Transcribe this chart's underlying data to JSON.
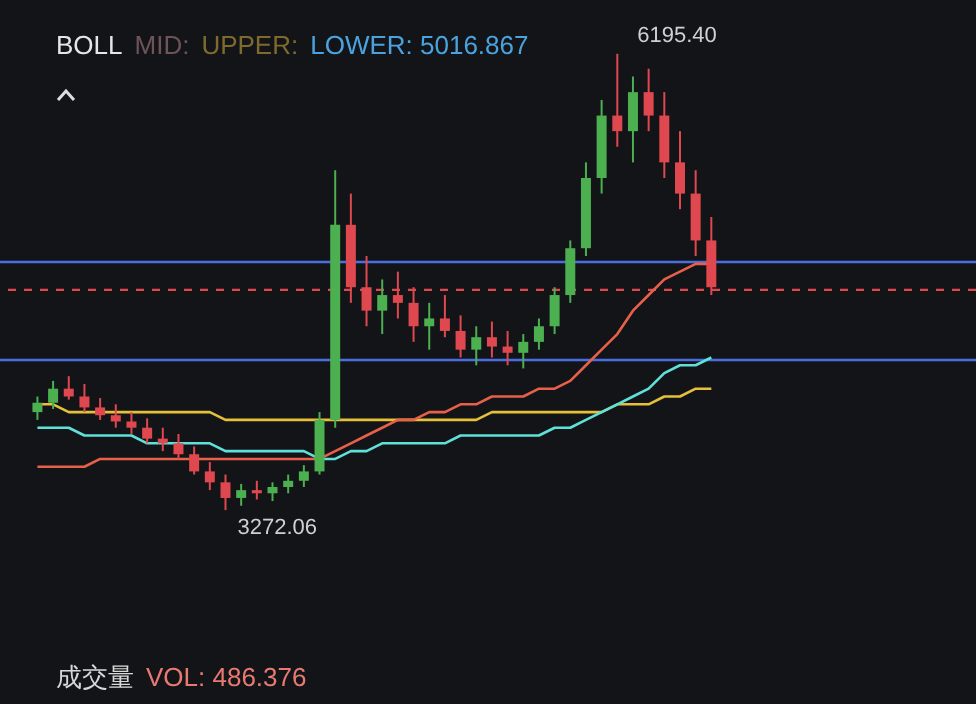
{
  "chart_data": {
    "type": "candlestick",
    "annotations": [
      "BOLL",
      "MID:",
      "UPPER:",
      "LOWER: 5016.867",
      "成交量",
      "VOL: 486.376",
      "6195.40",
      "3272.06"
    ],
    "categories": [
      null,
      null,
      null,
      null,
      null,
      null,
      null,
      null,
      null,
      null,
      null,
      null,
      null,
      null,
      null,
      null,
      null,
      null,
      null,
      null,
      null,
      null,
      null,
      null,
      null,
      null,
      null,
      null,
      null,
      null,
      null,
      null,
      null,
      null,
      null,
      null,
      null,
      null,
      null,
      null,
      null,
      null,
      null,
      null
    ],
    "ohlc": [
      [
        3900,
        4000,
        3850,
        3960
      ],
      [
        3960,
        4100,
        3920,
        4050
      ],
      [
        4050,
        4130,
        3980,
        4000
      ],
      [
        4000,
        4080,
        3900,
        3930
      ],
      [
        3930,
        3990,
        3850,
        3880
      ],
      [
        3880,
        3950,
        3800,
        3840
      ],
      [
        3840,
        3900,
        3760,
        3800
      ],
      [
        3800,
        3860,
        3700,
        3730
      ],
      [
        3730,
        3800,
        3650,
        3700
      ],
      [
        3700,
        3760,
        3600,
        3630
      ],
      [
        3630,
        3680,
        3500,
        3520
      ],
      [
        3520,
        3580,
        3400,
        3450
      ],
      [
        3450,
        3500,
        3272.06,
        3350
      ],
      [
        3350,
        3440,
        3300,
        3400
      ],
      [
        3400,
        3460,
        3340,
        3380
      ],
      [
        3380,
        3450,
        3330,
        3420
      ],
      [
        3420,
        3500,
        3380,
        3460
      ],
      [
        3460,
        3560,
        3420,
        3520
      ],
      [
        3520,
        3900,
        3500,
        3850
      ],
      [
        3850,
        5450,
        3800,
        5100
      ],
      [
        5100,
        5300,
        4600,
        4700
      ],
      [
        4700,
        4900,
        4450,
        4550
      ],
      [
        4550,
        4750,
        4400,
        4650
      ],
      [
        4650,
        4800,
        4500,
        4600
      ],
      [
        4600,
        4700,
        4350,
        4450
      ],
      [
        4450,
        4600,
        4300,
        4500
      ],
      [
        4500,
        4650,
        4380,
        4420
      ],
      [
        4420,
        4520,
        4250,
        4300
      ],
      [
        4300,
        4450,
        4200,
        4380
      ],
      [
        4380,
        4480,
        4250,
        4320
      ],
      [
        4320,
        4420,
        4200,
        4280
      ],
      [
        4280,
        4400,
        4180,
        4350
      ],
      [
        4350,
        4500,
        4300,
        4450
      ],
      [
        4450,
        4700,
        4400,
        4650
      ],
      [
        4650,
        5000,
        4600,
        4950
      ],
      [
        4950,
        5500,
        4900,
        5400
      ],
      [
        5400,
        5900,
        5300,
        5800
      ],
      [
        5800,
        6195.4,
        5600,
        5700
      ],
      [
        5700,
        6050,
        5500,
        5950
      ],
      [
        5950,
        6100,
        5700,
        5800
      ],
      [
        5800,
        5950,
        5400,
        5500
      ],
      [
        5500,
        5700,
        5200,
        5300
      ],
      [
        5300,
        5450,
        4900,
        5000
      ],
      [
        5000,
        5150,
        4650,
        4700
      ]
    ],
    "colors": [
      "#4caf50",
      "#4caf50",
      "#e0484f",
      "#e0484f",
      "#e0484f",
      "#e0484f",
      "#e0484f",
      "#e0484f",
      "#e0484f",
      "#e0484f",
      "#e0484f",
      "#e0484f",
      "#e0484f",
      "#4caf50",
      "#e0484f",
      "#4caf50",
      "#4caf50",
      "#4caf50",
      "#4caf50",
      "#4caf50",
      "#e0484f",
      "#e0484f",
      "#4caf50",
      "#e0484f",
      "#e0484f",
      "#4caf50",
      "#e0484f",
      "#e0484f",
      "#4caf50",
      "#e0484f",
      "#e0484f",
      "#4caf50",
      "#4caf50",
      "#4caf50",
      "#4caf50",
      "#4caf50",
      "#4caf50",
      "#e0484f",
      "#4caf50",
      "#e0484f",
      "#e0484f",
      "#e0484f",
      "#e0484f",
      "#e0484f"
    ],
    "series": [
      {
        "type": "line",
        "color": "#e6c03a",
        "values": [
          3950,
          3950,
          3900,
          3900,
          3900,
          3900,
          3900,
          3900,
          3900,
          3900,
          3900,
          3900,
          3850,
          3850,
          3850,
          3850,
          3850,
          3850,
          3850,
          3850,
          3850,
          3850,
          3850,
          3850,
          3850,
          3850,
          3850,
          3850,
          3850,
          3900,
          3900,
          3900,
          3900,
          3900,
          3900,
          3900,
          3900,
          3950,
          3950,
          3950,
          4000,
          4000,
          4050,
          4050
        ]
      },
      {
        "type": "line",
        "color": "#5fe0d8",
        "values": [
          3800,
          3800,
          3800,
          3750,
          3750,
          3750,
          3750,
          3700,
          3700,
          3700,
          3700,
          3700,
          3650,
          3650,
          3650,
          3650,
          3650,
          3650,
          3600,
          3600,
          3650,
          3650,
          3700,
          3700,
          3700,
          3700,
          3700,
          3750,
          3750,
          3750,
          3750,
          3750,
          3750,
          3800,
          3800,
          3850,
          3900,
          3950,
          4000,
          4050,
          4150,
          4200,
          4200,
          4250
        ]
      },
      {
        "type": "line",
        "color": "#e8604a",
        "values": [
          3550,
          3550,
          3550,
          3550,
          3600,
          3600,
          3600,
          3600,
          3600,
          3600,
          3600,
          3600,
          3600,
          3600,
          3600,
          3600,
          3600,
          3600,
          3600,
          3650,
          3700,
          3750,
          3800,
          3850,
          3850,
          3900,
          3900,
          3950,
          3950,
          4000,
          4000,
          4000,
          4050,
          4050,
          4100,
          4200,
          4300,
          4400,
          4550,
          4650,
          4750,
          4800,
          4850,
          4850
        ]
      }
    ],
    "ref_lines": [
      {
        "axis": "y",
        "value": 4683,
        "color": "#e0484f",
        "line_style": "dashed"
      },
      {
        "axis": "y",
        "value": 4862,
        "color": "#4a6ee0"
      },
      {
        "axis": "y",
        "value": 4234,
        "color": "#4a6ee0"
      }
    ]
  }
}
